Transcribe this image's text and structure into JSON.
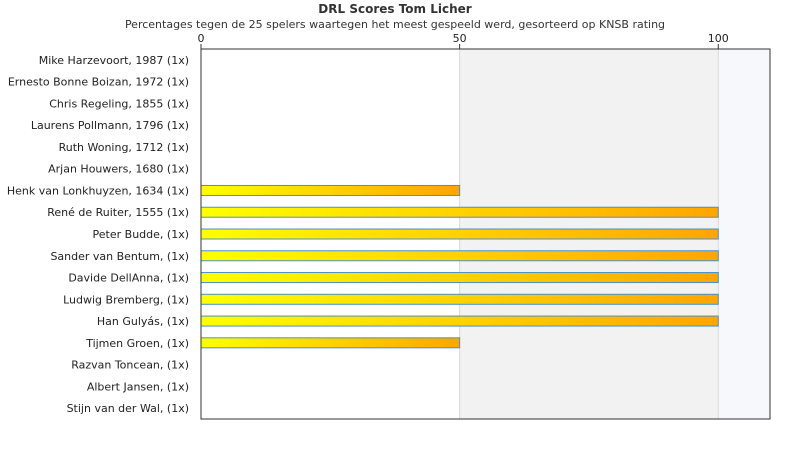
{
  "chart_data": {
    "type": "bar",
    "orientation": "horizontal",
    "title": "DRL Scores Tom Licher",
    "subtitle": "Percentages tegen de 25 spelers waartegen het meest gespeeld werd, gesorteerd op KNSB rating",
    "xlim": [
      0,
      110
    ],
    "xticks": [
      0,
      50,
      100
    ],
    "categories": [
      "Mike Harzevoort, 1987 (1x)",
      "Ernesto Bonne Boizan, 1972 (1x)",
      "Chris Regeling, 1855 (1x)",
      "Laurens Pollmann, 1796 (1x)",
      "Ruth Woning, 1712 (1x)",
      "Arjan Houwers, 1680 (1x)",
      "Henk van Lonkhuyzen, 1634 (1x)",
      "René de Ruiter, 1555 (1x)",
      "Peter Budde,  (1x)",
      "Sander van Bentum,  (1x)",
      "Davide DellAnna,  (1x)",
      "Ludwig Bremberg,  (1x)",
      "Han Gulyás,  (1x)",
      "Tijmen Groen,  (1x)",
      "Razvan Toncean,  (1x)",
      "Albert Jansen,  (1x)",
      "Stijn van der Wal,  (1x)"
    ],
    "values": [
      0,
      0,
      0,
      0,
      0,
      0,
      50,
      100,
      100,
      100,
      100,
      100,
      100,
      50,
      0,
      0,
      0
    ],
    "bar_gradient": [
      "#ffff00",
      "#ffa500"
    ],
    "bar_border": "#4a90c8",
    "band_colors": [
      "#ffffff",
      "#f2f2f2",
      "#f7f8fc"
    ]
  }
}
